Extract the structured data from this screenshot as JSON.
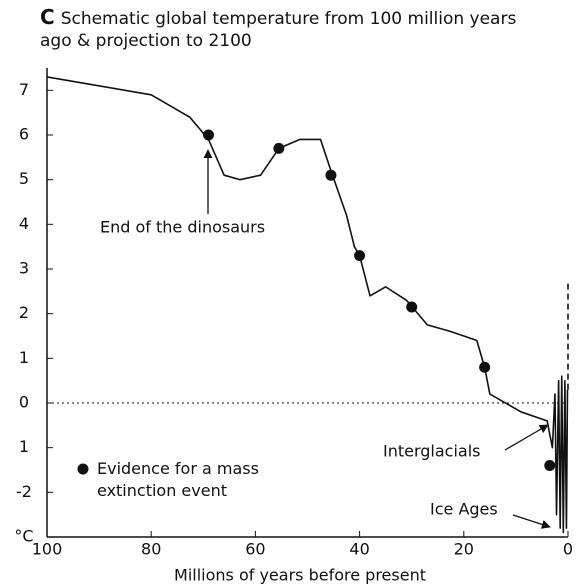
{
  "chart_data": {
    "type": "line",
    "panel_label": "C",
    "title": "Schematic global temperature from 100 million years ago & projection to 2100",
    "xlabel": "Millions of years before present",
    "xlim": [
      100,
      0
    ],
    "xticks": [
      100,
      80,
      60,
      40,
      20,
      0
    ],
    "ylim": [
      -3,
      7.5
    ],
    "yticks": [
      7,
      6,
      5,
      4,
      3,
      2,
      1,
      0,
      {
        "value": -1,
        "label": "1"
      },
      -2,
      {
        "value": -3,
        "label": "°C"
      }
    ],
    "zero_line": true,
    "series": [
      {
        "color": "#111111",
        "x": [
          100,
          80,
          72.6,
          69,
          66,
          63,
          59,
          55.5,
          51.5,
          47.5,
          45.5,
          42.5,
          41,
          40,
          38,
          35,
          31,
          27,
          22.5,
          17.5,
          16,
          15,
          9,
          4,
          3,
          2.5,
          2.2,
          1.8,
          1.5,
          1.2,
          0.9,
          0.6,
          0.3,
          0.1
        ],
        "values": [
          7.3,
          6.9,
          6.4,
          5.9,
          5.1,
          5.0,
          5.1,
          5.7,
          5.9,
          5.9,
          5.2,
          4.2,
          3.5,
          3.3,
          2.4,
          2.6,
          2.3,
          1.75,
          1.6,
          1.4,
          0.8,
          0.2,
          -0.2,
          -0.4,
          -1.0,
          0.2,
          -2.5,
          0.5,
          -2.8,
          0.6,
          -2.9,
          0.5,
          -2.8,
          0.3
        ]
      },
      {
        "type": "scatter",
        "name": "Evidence for a mass extinction event",
        "color": "#111111",
        "x": [
          69,
          55.5,
          45.5,
          40,
          30,
          16,
          3.5
        ],
        "values": [
          6.0,
          5.7,
          5.1,
          3.3,
          2.15,
          0.8,
          -1.4
        ]
      },
      {
        "dashed": true,
        "color": "#111111",
        "x": [
          0,
          0
        ],
        "values": [
          0.3,
          2.7
        ]
      }
    ],
    "annotations": [
      "End of the dinosaurs",
      "Interglacials",
      "Ice Ages"
    ]
  }
}
